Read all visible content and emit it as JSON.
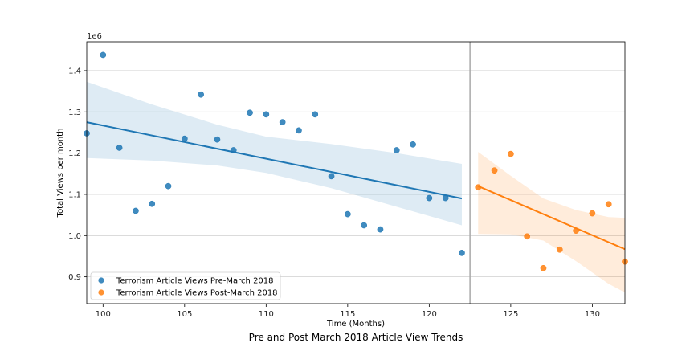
{
  "chart_data": {
    "type": "scatter",
    "title": "Pre and Post March 2018 Article View Trends",
    "xlabel": "Time (Months)",
    "ylabel": "Total Views per month",
    "y_offset_text": "1e6",
    "xlim": [
      99,
      132
    ],
    "ylim": [
      835000,
      1470000
    ],
    "x_ticks": [
      100,
      105,
      110,
      115,
      120,
      125,
      130
    ],
    "x_tick_labels": [
      "100",
      "105",
      "110",
      "115",
      "120",
      "125",
      "130"
    ],
    "y_ticks": [
      900000,
      1000000,
      1100000,
      1200000,
      1300000,
      1400000
    ],
    "y_tick_labels": [
      "0.9",
      "1.0",
      "1.1",
      "1.2",
      "1.3",
      "1.4"
    ],
    "grid": "horizontal",
    "legend_position": "lower-left",
    "divider_x": 122.5,
    "series": [
      {
        "name": "Terrorism Article Views Pre-March 2018",
        "color": "#1f77b4",
        "points": [
          [
            99,
            1248000
          ],
          [
            100,
            1438000
          ],
          [
            101,
            1213000
          ],
          [
            102,
            1060000
          ],
          [
            103,
            1077000
          ],
          [
            104,
            1120000
          ],
          [
            105,
            1235000
          ],
          [
            106,
            1342000
          ],
          [
            107,
            1233000
          ],
          [
            108,
            1207000
          ],
          [
            109,
            1298000
          ],
          [
            110,
            1294000
          ],
          [
            111,
            1275000
          ],
          [
            112,
            1255000
          ],
          [
            113,
            1294000
          ],
          [
            114,
            1144000
          ],
          [
            115,
            1052000
          ],
          [
            116,
            1025000
          ],
          [
            117,
            1015000
          ],
          [
            118,
            1207000
          ],
          [
            119,
            1221000
          ],
          [
            120,
            1091000
          ],
          [
            121,
            1091000
          ],
          [
            122,
            958000
          ]
        ],
        "fit": {
          "x": [
            99,
            122
          ],
          "y": [
            1275000,
            1090000
          ]
        },
        "ci_upper": [
          [
            99,
            1373000
          ],
          [
            103,
            1318000
          ],
          [
            107,
            1269000
          ],
          [
            110,
            1240000
          ],
          [
            114,
            1222000
          ],
          [
            118,
            1200000
          ],
          [
            122,
            1174000
          ]
        ],
        "ci_lower": [
          [
            99,
            1188000
          ],
          [
            103,
            1182000
          ],
          [
            107,
            1170000
          ],
          [
            110,
            1152000
          ],
          [
            114,
            1115000
          ],
          [
            118,
            1070000
          ],
          [
            122,
            1025000
          ]
        ]
      },
      {
        "name": "Terrorism Article Views Post-March 2018",
        "color": "#ff7f0e",
        "points": [
          [
            123,
            1117000
          ],
          [
            124,
            1158000
          ],
          [
            125,
            1198000
          ],
          [
            126,
            998000
          ],
          [
            127,
            921000
          ],
          [
            128,
            966000
          ],
          [
            129,
            1012000
          ],
          [
            130,
            1054000
          ],
          [
            131,
            1076000
          ],
          [
            132,
            937000
          ]
        ],
        "fit": {
          "x": [
            123,
            132
          ],
          "y": [
            1120000,
            967000
          ]
        },
        "ci_upper": [
          [
            123,
            1203000
          ],
          [
            125,
            1145000
          ],
          [
            127,
            1090000
          ],
          [
            129,
            1062000
          ],
          [
            131,
            1045000
          ],
          [
            132,
            1043000
          ]
        ],
        "ci_lower": [
          [
            123,
            1004000
          ],
          [
            125,
            1003000
          ],
          [
            127,
            988000
          ],
          [
            129,
            938000
          ],
          [
            131,
            883000
          ],
          [
            132,
            862000
          ]
        ]
      }
    ]
  }
}
